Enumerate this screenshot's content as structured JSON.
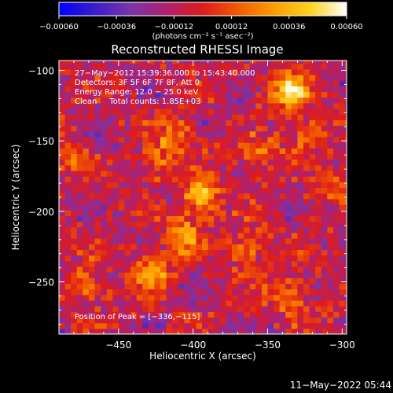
{
  "chart_data": {
    "type": "heatmap",
    "title": "Reconstructed RHESSI Image",
    "xlabel": "Heliocentric X (arcsec)",
    "ylabel": "Heliocentric Y (arcsec)",
    "xlim": [
      -490,
      -297
    ],
    "ylim": [
      -287,
      -93
    ],
    "xticks": [
      -450,
      -400,
      -350,
      -300
    ],
    "xtick_labels": [
      "−450",
      "−400",
      "−350",
      "−300"
    ],
    "yticks": [
      -100,
      -150,
      -200,
      -250
    ],
    "ytick_labels": [
      "−100",
      "−150",
      "−200",
      "−250"
    ],
    "colorbar": {
      "range": [
        -0.0006,
        0.0006
      ],
      "ticks": [
        -0.0006,
        -0.00036,
        -0.00012,
        0.00012,
        0.00036,
        0.0006
      ],
      "tick_labels": [
        "−0.00060",
        "−0.00036",
        "−0.00012",
        "0.00012",
        "0.00036",
        "0.00060"
      ],
      "unit_label": "(photons cm⁻² s⁻¹ asec⁻²)",
      "colormap": [
        "#0000ff",
        "#3a1ec8",
        "#7a34a8",
        "#b0206e",
        "#dd1c1c",
        "#f25c00",
        "#ff9d00",
        "#ffd21e",
        "#ffffff"
      ]
    },
    "annotations": {
      "time": "27−May−2012 15:39:36.000 to 15:43:40.000",
      "detectors": "Detectors: 3F 5F 6F 7F 8F, Att 0",
      "energy": "Energy Range: 12.0 − 25.0 keV",
      "clean": "Clean     Total counts: 1.85E+03",
      "peak": "Position of Peak = [−336,−115]"
    },
    "sources": [
      {
        "x": -336,
        "y": -115,
        "amp": 0.0006
      },
      {
        "x": -394,
        "y": -189,
        "amp": 0.00048
      },
      {
        "x": -407,
        "y": -217,
        "amp": 0.0004
      },
      {
        "x": -410,
        "y": -145,
        "amp": 0.00036
      },
      {
        "x": -423,
        "y": -165,
        "amp": 0.00032
      },
      {
        "x": -428,
        "y": -243,
        "amp": 0.00044
      },
      {
        "x": -337,
        "y": -260,
        "amp": 0.0004
      },
      {
        "x": -362,
        "y": -226,
        "amp": 0.0003
      },
      {
        "x": -470,
        "y": -252,
        "amp": 0.00028
      },
      {
        "x": -483,
        "y": -160,
        "amp": 0.00024
      },
      {
        "x": -356,
        "y": -160,
        "amp": 0.00028
      },
      {
        "x": -324,
        "y": -145,
        "amp": 0.00032
      },
      {
        "x": -305,
        "y": -180,
        "amp": 0.00026
      }
    ]
  },
  "footer": {
    "timestamp": "11−May−2022 05:44"
  }
}
